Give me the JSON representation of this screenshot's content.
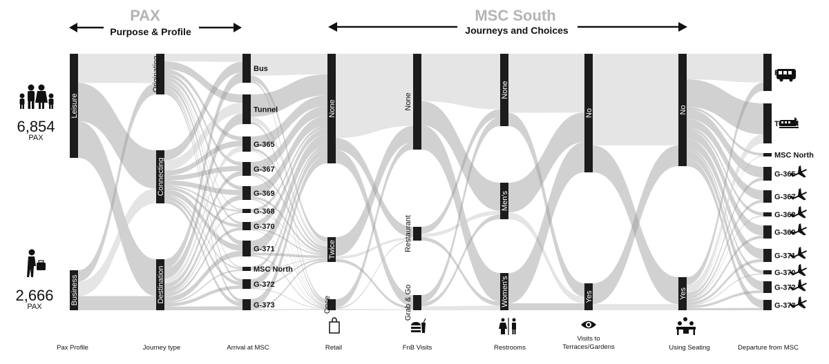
{
  "headers": {
    "pax": {
      "title": "PAX",
      "subtitle": "Purpose & Profile"
    },
    "msc": {
      "title": "MSC South",
      "subtitle": "Journeys and Choices"
    }
  },
  "pax_totals": {
    "leisure": {
      "value": "6,854",
      "unit": "PAX"
    },
    "business": {
      "value": "2,666",
      "unit": "PAX"
    }
  },
  "columns": [
    {
      "label": "Pax Profile",
      "icon": ""
    },
    {
      "label": "Journey type",
      "icon": ""
    },
    {
      "label": "Arrival at MSC",
      "icon": ""
    },
    {
      "label": "Retail",
      "icon": "shopping-bag-icon"
    },
    {
      "label": "FnB Visits",
      "icon": "burger-drink-icon"
    },
    {
      "label": "Restrooms",
      "icon": "restroom-icon"
    },
    {
      "label": "Visits to\nTerraces/Gardens",
      "icon": "eye-icon"
    },
    {
      "label": "Using Seating",
      "icon": "seating-icon"
    },
    {
      "label": "Departure from MSC",
      "icon": ""
    }
  ],
  "nodes": {
    "profile": [
      "Leisure",
      "Business"
    ],
    "journey": [
      "Originating",
      "Connecting",
      "Destination"
    ],
    "arrival": [
      "Bus",
      "Tunnel",
      "G-365",
      "G-367",
      "G-369",
      "G-368",
      "G-370",
      "G-371",
      "MSC North",
      "G-372",
      "G-373"
    ],
    "retail": [
      "None",
      "Twice",
      "Once"
    ],
    "fnb": [
      "None",
      "Restaurant",
      "Grab & Go"
    ],
    "restrooms": [
      "None",
      "Men's",
      "Women's"
    ],
    "terraces": [
      "No",
      "Yes"
    ],
    "seating": [
      "No",
      "Yes"
    ],
    "departure": [
      "Bus",
      "Tunnel",
      "MSC North",
      "G-365",
      "G-367",
      "G-368",
      "G-369",
      "G-371",
      "G-370",
      "G-372",
      "G-373"
    ]
  },
  "icons": {
    "family": "family-icon",
    "traveler": "traveler-icon",
    "bus": "bus-icon",
    "train": "train-icon",
    "plane": "airplane-icon"
  },
  "colors": {
    "node": "#1c1c1c",
    "flow": "#9a9a9a",
    "flow_light": "#cfcfcf",
    "header": "#b4b4b4"
  }
}
